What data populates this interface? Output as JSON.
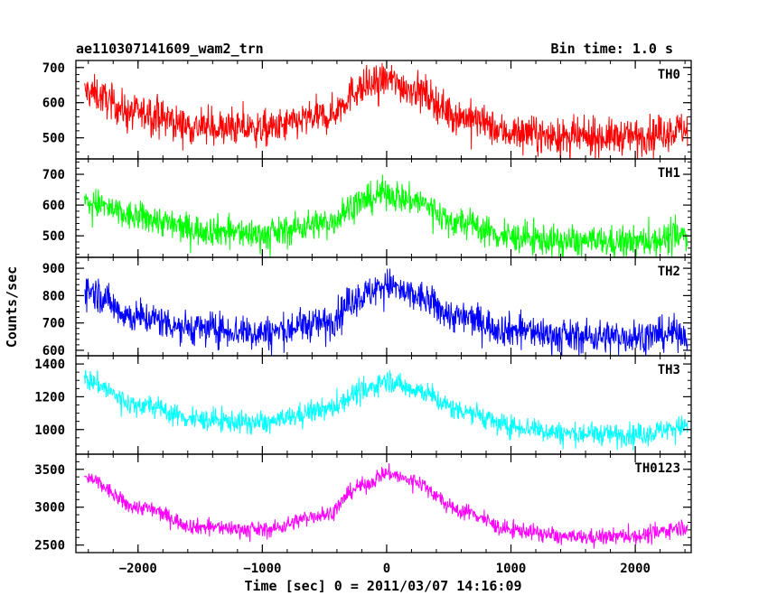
{
  "header": {
    "title": "ae110307141609_wam2_trn",
    "bin_time": "Bin time: 1.0 s"
  },
  "chart_data": {
    "type": "line",
    "title": "ae110307141609_wam2_trn",
    "subtitle": "Bin time: 1.0 s",
    "xlabel": "Time [sec] 0 = 2011/03/07 14:16:09",
    "ylabel": "Counts/sec",
    "xlim": [
      -2500,
      2450
    ],
    "x_ticks": [
      -2000,
      -1000,
      0,
      1000,
      2000
    ],
    "x_tick_labels": [
      "−2000",
      "−1000",
      "0",
      "1000",
      "2000"
    ],
    "x_minor_step": 200,
    "grid": false,
    "x_data_range": [
      -2430,
      2420
    ],
    "panels": [
      {
        "name": "TH0",
        "color": "#ff0000",
        "ylim": [
          440,
          720
        ],
        "y_ticks": [
          500,
          600,
          700
        ],
        "y_minor_step": 20,
        "profile": [
          [
            -2430,
            630
          ],
          [
            -2000,
            570
          ],
          [
            -1500,
            530
          ],
          [
            -1000,
            525
          ],
          [
            -500,
            560
          ],
          [
            -200,
            640
          ],
          [
            0,
            665
          ],
          [
            200,
            640
          ],
          [
            600,
            560
          ],
          [
            1000,
            515
          ],
          [
            1500,
            500
          ],
          [
            2000,
            505
          ],
          [
            2420,
            525
          ]
        ],
        "spread": 45
      },
      {
        "name": "TH1",
        "color": "#00ff00",
        "ylim": [
          430,
          750
        ],
        "y_ticks": [
          500,
          600,
          700
        ],
        "y_minor_step": 20,
        "profile": [
          [
            -2430,
            610
          ],
          [
            -2000,
            560
          ],
          [
            -1500,
            520
          ],
          [
            -1000,
            505
          ],
          [
            -500,
            540
          ],
          [
            -200,
            610
          ],
          [
            0,
            640
          ],
          [
            200,
            615
          ],
          [
            600,
            540
          ],
          [
            1000,
            495
          ],
          [
            1500,
            480
          ],
          [
            2000,
            480
          ],
          [
            2420,
            500
          ]
        ],
        "spread": 45
      },
      {
        "name": "TH2",
        "color": "#0000ff",
        "ylim": [
          580,
          940
        ],
        "y_ticks": [
          600,
          700,
          800,
          900
        ],
        "y_minor_step": 20,
        "profile": [
          [
            -2430,
            820
          ],
          [
            -2000,
            720
          ],
          [
            -1500,
            680
          ],
          [
            -1000,
            665
          ],
          [
            -500,
            700
          ],
          [
            -200,
            800
          ],
          [
            0,
            840
          ],
          [
            200,
            800
          ],
          [
            600,
            720
          ],
          [
            1000,
            675
          ],
          [
            1500,
            650
          ],
          [
            2000,
            650
          ],
          [
            2420,
            665
          ]
        ],
        "spread": 55
      },
      {
        "name": "TH3",
        "color": "#00ffff",
        "ylim": [
          850,
          1450
        ],
        "y_ticks": [
          1000,
          1200,
          1400
        ],
        "y_minor_step": 50,
        "profile": [
          [
            -2430,
            1300
          ],
          [
            -2000,
            1150
          ],
          [
            -1500,
            1060
          ],
          [
            -1000,
            1040
          ],
          [
            -500,
            1120
          ],
          [
            -200,
            1230
          ],
          [
            0,
            1300
          ],
          [
            200,
            1250
          ],
          [
            600,
            1120
          ],
          [
            1000,
            1020
          ],
          [
            1500,
            975
          ],
          [
            2000,
            970
          ],
          [
            2420,
            1020
          ]
        ],
        "spread": 60
      },
      {
        "name": "TH0123",
        "color": "#ff00ff",
        "ylim": [
          2400,
          3700
        ],
        "y_ticks": [
          2500,
          3000,
          3500
        ],
        "y_minor_step": 100,
        "profile": [
          [
            -2430,
            3380
          ],
          [
            -2000,
            3000
          ],
          [
            -1500,
            2740
          ],
          [
            -1000,
            2700
          ],
          [
            -500,
            2900
          ],
          [
            -200,
            3280
          ],
          [
            0,
            3450
          ],
          [
            200,
            3350
          ],
          [
            600,
            2950
          ],
          [
            1000,
            2700
          ],
          [
            1500,
            2600
          ],
          [
            2000,
            2620
          ],
          [
            2420,
            2740
          ]
        ],
        "spread": 95
      }
    ]
  }
}
